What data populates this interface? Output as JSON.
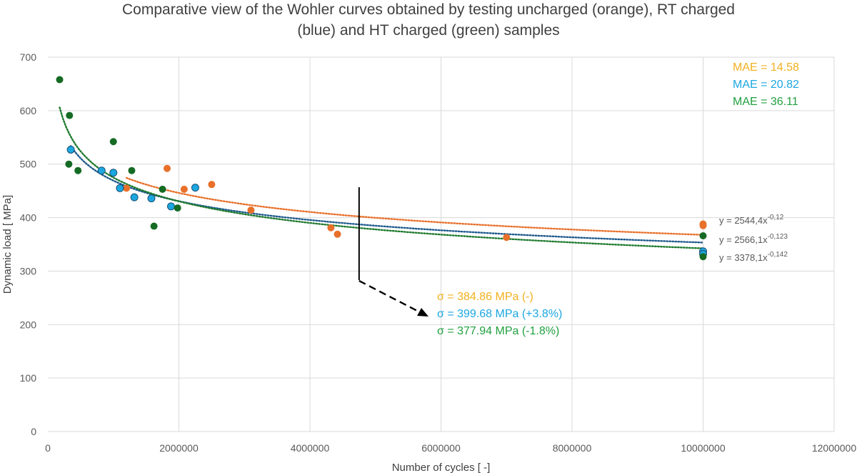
{
  "colors": {
    "uncharged": "#E8702A",
    "rt_charged": "#1CA7E0",
    "ht_charged": "#156B24",
    "uncharged_trend": "#E8702A",
    "rt_trend": "#1F5A8C",
    "ht_trend": "#1E7A2E",
    "mae_uncharged": "#F2B01E",
    "mae_rt": "#1CA7E0",
    "mae_ht": "#21A040"
  },
  "chart_data": {
    "type": "scatter",
    "title_line1": "Comparative view of the Wohler curves obtained by testing uncharged (orange), RT charged",
    "title_line2": "(blue) and HT charged (green) samples",
    "xlabel": "Number of cycles [ -]",
    "ylabel": "Dynamic load [ MPa]",
    "xlim": [
      0,
      12000000
    ],
    "ylim": [
      0,
      700
    ],
    "x_ticks": [
      0,
      2000000,
      4000000,
      6000000,
      8000000,
      10000000,
      12000000
    ],
    "x_tick_labels": [
      "0",
      "2000000",
      "4000000",
      "6000000",
      "8000000",
      "10000000",
      "12000000"
    ],
    "y_ticks": [
      0,
      100,
      200,
      300,
      400,
      500,
      600,
      700
    ],
    "y_tick_labels": [
      "0",
      "100",
      "200",
      "300",
      "400",
      "500",
      "600",
      "700"
    ],
    "grid": true,
    "series": [
      {
        "name": "uncharged",
        "color_key": "uncharged",
        "points": [
          [
            1200000,
            455
          ],
          [
            1820000,
            492
          ],
          [
            2080000,
            453
          ],
          [
            2500000,
            462
          ],
          [
            3100000,
            414
          ],
          [
            4320000,
            381
          ],
          [
            4420000,
            369
          ],
          [
            7000000,
            363
          ],
          [
            10000000,
            388
          ],
          [
            10000000,
            385
          ]
        ],
        "trend": {
          "a": 2544.4,
          "b": -0.12,
          "x_from": 1200000,
          "x_to": 10000000,
          "color_key": "uncharged_trend",
          "equation_base": "y = 2544,4x",
          "equation_exp": "-0,12"
        }
      },
      {
        "name": "RT charged",
        "color_key": "rt_charged",
        "points": [
          [
            350000,
            527
          ],
          [
            820000,
            488
          ],
          [
            1000000,
            484
          ],
          [
            1100000,
            455
          ],
          [
            1320000,
            438
          ],
          [
            1580000,
            436
          ],
          [
            1880000,
            421
          ],
          [
            2250000,
            456
          ],
          [
            10000000,
            337
          ],
          [
            10000000,
            332
          ]
        ],
        "trend": {
          "a": 2566.1,
          "b": -0.123,
          "x_from": 350000,
          "x_to": 10000000,
          "color_key": "rt_trend",
          "equation_base": "y = 2566,1x",
          "equation_exp": "-0,123"
        }
      },
      {
        "name": "HT charged",
        "color_key": "ht_charged",
        "points": [
          [
            180000,
            658
          ],
          [
            330000,
            591
          ],
          [
            320000,
            500
          ],
          [
            460000,
            488
          ],
          [
            1000000,
            542
          ],
          [
            1280000,
            488
          ],
          [
            1620000,
            384
          ],
          [
            1750000,
            453
          ],
          [
            1980000,
            418
          ],
          [
            10000000,
            366
          ],
          [
            10000000,
            327
          ]
        ],
        "trend": {
          "a": 3378.1,
          "b": -0.142,
          "x_from": 180000,
          "x_to": 10000000,
          "color_key": "ht_trend",
          "equation_base": "y = 3378,1x",
          "equation_exp": "-0,142"
        }
      }
    ],
    "mae": [
      {
        "text": "MAE = 14.58",
        "color_key": "mae_uncharged"
      },
      {
        "text": "MAE = 20.82",
        "color_key": "mae_rt"
      },
      {
        "text": "MAE = 36.11",
        "color_key": "mae_ht"
      }
    ],
    "sigma": [
      {
        "text": "σ = 384.86 MPa (-)",
        "color_key": "mae_uncharged"
      },
      {
        "text": "σ = 399.68 MPa (+3.8%)",
        "color_key": "mae_rt"
      },
      {
        "text": "σ = 377.94 MPa (-1.8%)",
        "color_key": "mae_ht"
      }
    ],
    "marker_cycles": 4750000
  }
}
